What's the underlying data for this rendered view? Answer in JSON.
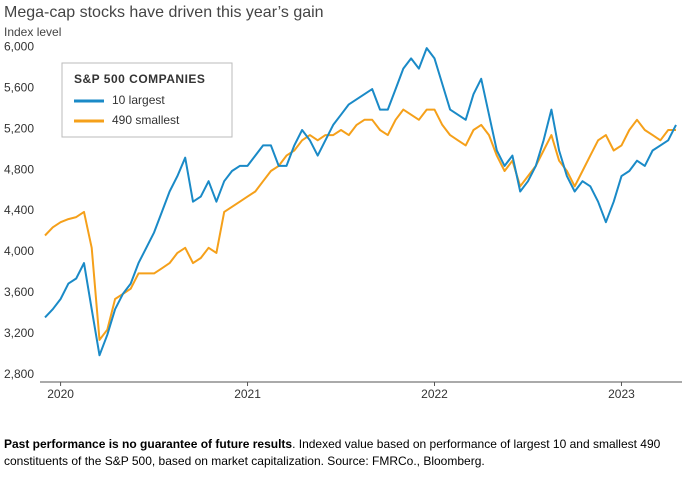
{
  "chart_data": {
    "type": "line",
    "title": "Mega-cap stocks have driven this year’s gain",
    "y_label": "Index level",
    "legend_title": "S&P 500 COMPANIES",
    "legend_position": "upper left",
    "note_bold": "Past performance is no guarantee of future results",
    "note": ". Indexed value based on performance of largest 10 and smallest 490 constituents of the S&P 500, based on market capitalization. Source: FMRCo., Bloomberg.",
    "categories": [
      null,
      null,
      "2020",
      null,
      null,
      null,
      null,
      null,
      null,
      null,
      null,
      null,
      null,
      null,
      null,
      null,
      null,
      null,
      null,
      null,
      null,
      null,
      null,
      null,
      null,
      null,
      "2021",
      null,
      null,
      null,
      null,
      null,
      null,
      null,
      null,
      null,
      null,
      null,
      null,
      null,
      null,
      null,
      null,
      null,
      null,
      null,
      null,
      null,
      null,
      null,
      "2022",
      null,
      null,
      null,
      null,
      null,
      null,
      null,
      null,
      null,
      null,
      null,
      null,
      null,
      null,
      null,
      null,
      null,
      null,
      null,
      null,
      null,
      null,
      null,
      "2023",
      null,
      null,
      null,
      null,
      null,
      null,
      null
    ],
    "series": [
      {
        "name": "10 largest",
        "color": "#1a8ac7",
        "values": [
          3420,
          3500,
          3600,
          3750,
          3800,
          3950,
          3500,
          3050,
          3250,
          3500,
          3650,
          3750,
          3950,
          4100,
          4250,
          4450,
          4650,
          4800,
          4980,
          4550,
          4600,
          4750,
          4550,
          4750,
          4850,
          4900,
          4900,
          5000,
          5100,
          5100,
          4900,
          4900,
          5100,
          5250,
          5150,
          5000,
          5150,
          5300,
          5400,
          5500,
          5550,
          5600,
          5650,
          5450,
          5450,
          5650,
          5850,
          5950,
          5850,
          6050,
          5950,
          5700,
          5450,
          5400,
          5350,
          5600,
          5750,
          5400,
          5050,
          4900,
          5000,
          4650,
          4750,
          4900,
          5150,
          5450,
          5050,
          4800,
          4650,
          4750,
          4700,
          4550,
          4350,
          4550,
          4800,
          4850,
          4950,
          4900,
          5050,
          5100,
          5150,
          5300
        ]
      },
      {
        "name": "490 smallest",
        "color": "#f5a01a",
        "values": [
          4220,
          4300,
          4350,
          4380,
          4400,
          4450,
          4100,
          3200,
          3300,
          3600,
          3650,
          3700,
          3850,
          3850,
          3850,
          3900,
          3950,
          4050,
          4100,
          3950,
          4000,
          4100,
          4050,
          4450,
          4500,
          4550,
          4600,
          4650,
          4750,
          4850,
          4900,
          5000,
          5050,
          5150,
          5200,
          5150,
          5200,
          5200,
          5250,
          5200,
          5300,
          5350,
          5350,
          5250,
          5200,
          5350,
          5450,
          5400,
          5350,
          5450,
          5450,
          5300,
          5200,
          5150,
          5100,
          5250,
          5300,
          5200,
          5000,
          4850,
          4950,
          4700,
          4800,
          4900,
          5050,
          5200,
          4950,
          4850,
          4700,
          4850,
          5000,
          5150,
          5200,
          5050,
          5100,
          5250,
          5350,
          5250,
          5200,
          5150,
          5250,
          5250
        ]
      }
    ],
    "ylim": [
      2750,
      6100
    ],
    "yticks": [
      {
        "value": 2800,
        "label": "2,800"
      },
      {
        "value": 3200,
        "label": "3,200"
      },
      {
        "value": 3600,
        "label": "3,600"
      },
      {
        "value": 4000,
        "label": "4,000"
      },
      {
        "value": 4400,
        "label": "4,400"
      },
      {
        "value": 4800,
        "label": "4,800"
      },
      {
        "value": 5200,
        "label": "5,200"
      },
      {
        "value": 5600,
        "label": "5,600"
      },
      {
        "value": 6000,
        "label": "6,000"
      }
    ],
    "grid": false
  }
}
